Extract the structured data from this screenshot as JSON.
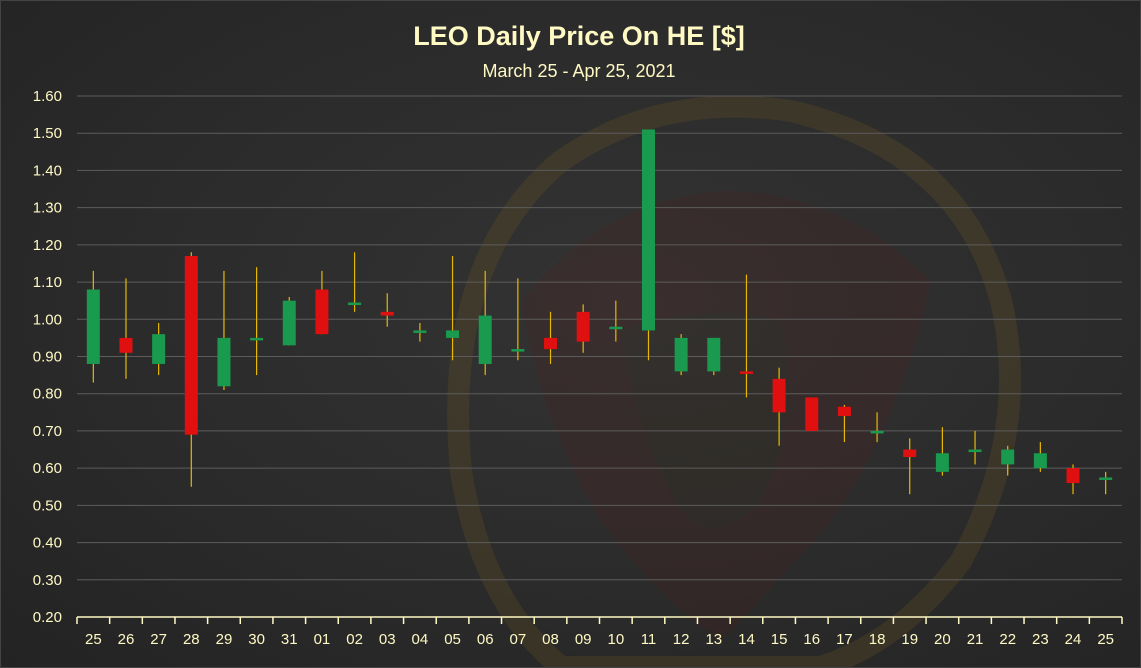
{
  "chart_data": {
    "type": "candlestick",
    "title": "LEO Daily Price On HE [$]",
    "subtitle": "March 25 - Apr 25, 2021",
    "ylim": [
      0.2,
      1.6
    ],
    "y_ticks": [
      "0.20",
      "0.30",
      "0.40",
      "0.50",
      "0.60",
      "0.70",
      "0.80",
      "0.90",
      "1.00",
      "1.10",
      "1.20",
      "1.30",
      "1.40",
      "1.50",
      "1.60"
    ],
    "grid": true,
    "colors": {
      "up": "#1a9a4e",
      "down": "#e01010",
      "wick": "#e6b800",
      "text": "#fff9c4"
    },
    "categories": [
      "25",
      "26",
      "27",
      "28",
      "29",
      "30",
      "31",
      "01",
      "02",
      "03",
      "04",
      "05",
      "06",
      "07",
      "08",
      "09",
      "10",
      "11",
      "12",
      "13",
      "14",
      "15",
      "16",
      "17",
      "18",
      "19",
      "20",
      "21",
      "22",
      "23",
      "24",
      "25"
    ],
    "candles": [
      {
        "open": 0.88,
        "high": 1.13,
        "low": 0.83,
        "close": 1.08
      },
      {
        "open": 0.95,
        "high": 1.11,
        "low": 0.84,
        "close": 0.91
      },
      {
        "open": 0.88,
        "high": 0.99,
        "low": 0.85,
        "close": 0.96
      },
      {
        "open": 1.17,
        "high": 1.18,
        "low": 0.55,
        "close": 0.69
      },
      {
        "open": 0.82,
        "high": 1.13,
        "low": 0.81,
        "close": 0.95
      },
      {
        "open": 0.95,
        "high": 1.14,
        "low": 0.85,
        "close": 0.95
      },
      {
        "open": 0.93,
        "high": 1.06,
        "low": 0.93,
        "close": 1.05
      },
      {
        "open": 1.08,
        "high": 1.13,
        "low": 0.96,
        "close": 0.96
      },
      {
        "open": 1.04,
        "high": 1.18,
        "low": 1.02,
        "close": 1.045
      },
      {
        "open": 1.02,
        "high": 1.07,
        "low": 0.98,
        "close": 1.01
      },
      {
        "open": 0.97,
        "high": 0.99,
        "low": 0.94,
        "close": 0.97
      },
      {
        "open": 0.95,
        "high": 1.17,
        "low": 0.89,
        "close": 0.97
      },
      {
        "open": 0.88,
        "high": 1.13,
        "low": 0.85,
        "close": 1.01
      },
      {
        "open": 0.92,
        "high": 1.11,
        "low": 0.89,
        "close": 0.92
      },
      {
        "open": 0.95,
        "high": 1.02,
        "low": 0.88,
        "close": 0.92
      },
      {
        "open": 1.02,
        "high": 1.04,
        "low": 0.91,
        "close": 0.94
      },
      {
        "open": 0.975,
        "high": 1.05,
        "low": 0.94,
        "close": 0.98
      },
      {
        "open": 0.97,
        "high": 1.51,
        "low": 0.89,
        "close": 1.51
      },
      {
        "open": 0.86,
        "high": 0.96,
        "low": 0.85,
        "close": 0.95
      },
      {
        "open": 0.86,
        "high": 0.95,
        "low": 0.85,
        "close": 0.95
      },
      {
        "open": 0.86,
        "high": 1.12,
        "low": 0.79,
        "close": 0.855
      },
      {
        "open": 0.84,
        "high": 0.87,
        "low": 0.66,
        "close": 0.75
      },
      {
        "open": 0.79,
        "high": 0.79,
        "low": 0.7,
        "close": 0.7
      },
      {
        "open": 0.765,
        "high": 0.77,
        "low": 0.67,
        "close": 0.74
      },
      {
        "open": 0.7,
        "high": 0.75,
        "low": 0.67,
        "close": 0.7
      },
      {
        "open": 0.65,
        "high": 0.68,
        "low": 0.53,
        "close": 0.63
      },
      {
        "open": 0.59,
        "high": 0.71,
        "low": 0.58,
        "close": 0.64
      },
      {
        "open": 0.65,
        "high": 0.7,
        "low": 0.61,
        "close": 0.65
      },
      {
        "open": 0.61,
        "high": 0.66,
        "low": 0.58,
        "close": 0.65
      },
      {
        "open": 0.6,
        "high": 0.67,
        "low": 0.59,
        "close": 0.64
      },
      {
        "open": 0.6,
        "high": 0.61,
        "low": 0.53,
        "close": 0.56
      },
      {
        "open": 0.57,
        "high": 0.59,
        "low": 0.53,
        "close": 0.575
      }
    ]
  }
}
